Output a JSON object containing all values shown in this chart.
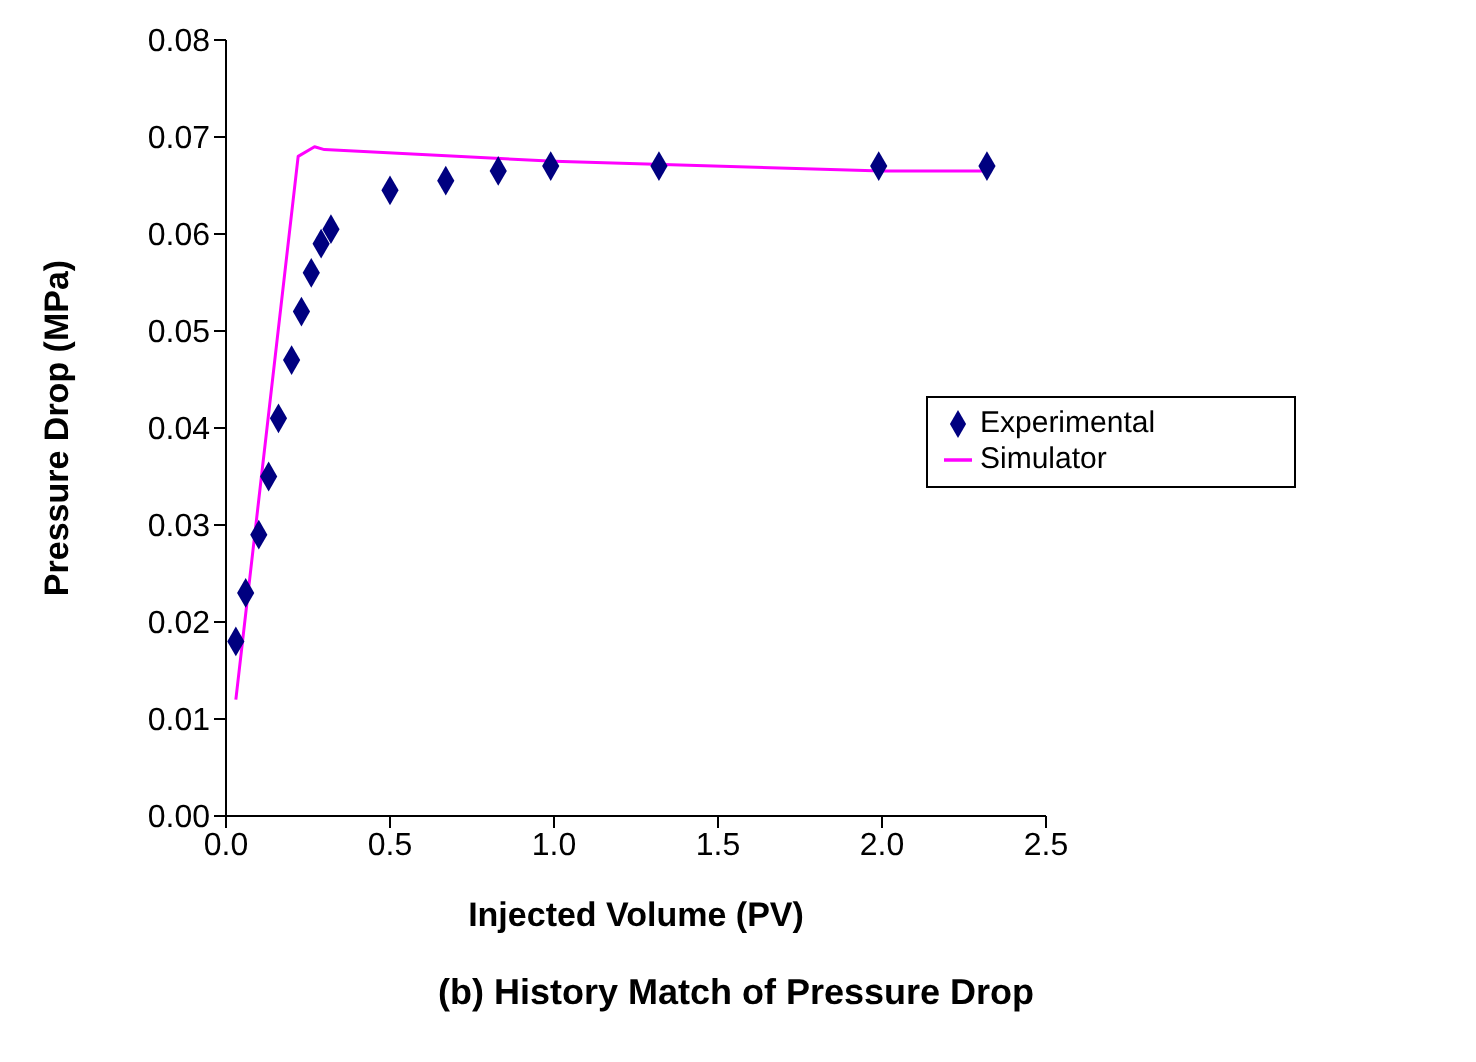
{
  "chart_data": {
    "type": "scatter",
    "title": "(b) History Match of Pressure Drop",
    "xlabel": "Injected Volume (PV)",
    "ylabel": "Pressure Drop (MPa)",
    "xlim": [
      0,
      2.5
    ],
    "xticks": [
      {
        "value": 0,
        "label": "0.0"
      },
      {
        "value": 0.5,
        "label": "0.5"
      },
      {
        "value": 1,
        "label": "1.0"
      },
      {
        "value": 1.5,
        "label": "1.5"
      },
      {
        "value": 2,
        "label": "2.0"
      },
      {
        "value": 2.5,
        "label": "2.5"
      }
    ],
    "ylim": [
      0,
      0.08
    ],
    "yticks": [
      {
        "value": 0,
        "label": "0.00"
      },
      {
        "value": 0.01,
        "label": "0.01"
      },
      {
        "value": 0.02,
        "label": "0.02"
      },
      {
        "value": 0.03,
        "label": "0.03"
      },
      {
        "value": 0.04,
        "label": "0.04"
      },
      {
        "value": 0.05,
        "label": "0.05"
      },
      {
        "value": 0.06,
        "label": "0.06"
      },
      {
        "value": 0.07,
        "label": "0.07"
      },
      {
        "value": 0.08,
        "label": "0.08"
      }
    ],
    "grid": false,
    "legend": "right",
    "series": [
      {
        "name": "Experimental",
        "marker": "diamond",
        "color": "#000080",
        "x": [
          0.03,
          0.06,
          0.1,
          0.13,
          0.16,
          0.2,
          0.23,
          0.26,
          0.29,
          0.32,
          0.5,
          0.67,
          0.83,
          0.99,
          1.32,
          1.99,
          2.32
        ],
        "values": [
          0.018,
          0.023,
          0.029,
          0.035,
          0.041,
          0.047,
          0.052,
          0.056,
          0.059,
          0.0605,
          0.0645,
          0.0655,
          0.0665,
          0.067,
          0.067,
          0.067,
          0.067
        ]
      },
      {
        "name": "Simulator",
        "type": "line",
        "marker": "none",
        "color": "#ff00ff",
        "x": [
          0.03,
          0.22,
          0.27,
          0.3,
          1.0,
          2.0,
          2.33
        ],
        "values": [
          0.012,
          0.068,
          0.069,
          0.0687,
          0.0675,
          0.0665,
          0.0665
        ]
      }
    ]
  }
}
